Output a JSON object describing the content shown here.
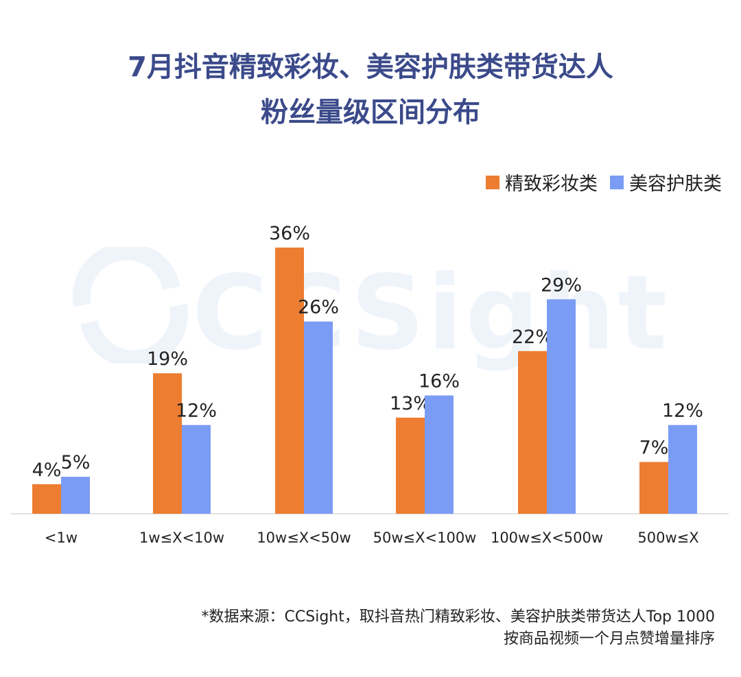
{
  "title": {
    "line1": "7月抖音精致彩妆、美容护肤类带货达人",
    "line2": "粉丝量级区间分布"
  },
  "legend": [
    {
      "name": "精致彩妆类",
      "color": "#ed7d31"
    },
    {
      "name": "美容护肤类",
      "color": "#7b9cf5"
    }
  ],
  "watermark": {
    "text": "CCSight"
  },
  "source": {
    "line1": "*数据来源：CCSight，取抖音热门精致彩妆、美容护肤类带货达人Top 1000",
    "line2": "按商品视频一个月点赞增量排序"
  },
  "chart_data": {
    "type": "bar",
    "categories": [
      "<1w",
      "1w≤X<10w",
      "10w≤X<50w",
      "50w≤X<100w",
      "100w≤X<500w",
      "500w≤X"
    ],
    "series": [
      {
        "name": "精致彩妆类",
        "values": [
          4,
          19,
          36,
          13,
          22,
          7
        ],
        "labels": [
          "4%",
          "19%",
          "36%",
          "13%",
          "22%",
          "7%"
        ],
        "color": "#ed7d31"
      },
      {
        "name": "美容护肤类",
        "values": [
          5,
          12,
          26,
          16,
          29,
          12
        ],
        "labels": [
          "5%",
          "12%",
          "26%",
          "16%",
          "29%",
          "12%"
        ],
        "color": "#7b9cf5"
      }
    ],
    "title": "7月抖音精致彩妆、美容护肤类带货达人粉丝量级区间分布",
    "xlabel": "",
    "ylabel": "",
    "ylim": [
      0,
      36
    ],
    "grid": false,
    "legend_position": "top-right"
  }
}
